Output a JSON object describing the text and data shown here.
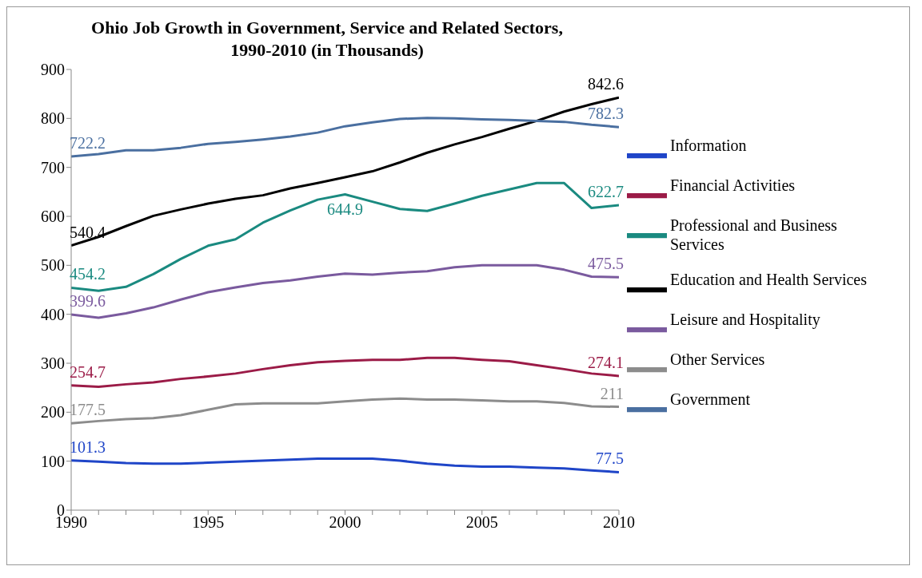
{
  "chart_data": {
    "type": "line",
    "title": "Ohio Job Growth in Government, Service and Related Sectors, 1990-2010 (in Thousands)",
    "x": [
      1990,
      1991,
      1992,
      1993,
      1994,
      1995,
      1996,
      1997,
      1998,
      1999,
      2000,
      2001,
      2002,
      2003,
      2004,
      2005,
      2006,
      2007,
      2008,
      2009,
      2010
    ],
    "series": [
      {
        "name": "Information",
        "color": "#1f45c8",
        "values": [
          101.3,
          99,
          96,
          95,
          95,
          97,
          99,
          101,
          103,
          105,
          105,
          105,
          101,
          95,
          91,
          89,
          89,
          87,
          85,
          81,
          77.5
        ],
        "value_labels": [
          "101.3",
          null,
          null,
          null,
          null,
          null,
          null,
          null,
          null,
          null,
          null,
          null,
          null,
          null,
          null,
          null,
          null,
          null,
          null,
          null,
          "77.5"
        ]
      },
      {
        "name": "Financial Activities",
        "color": "#9b1b47",
        "values": [
          254.7,
          252,
          257,
          261,
          268,
          273,
          279,
          288,
          296,
          302,
          305,
          307,
          307,
          311,
          311,
          307,
          304,
          296,
          288,
          279,
          274.1
        ],
        "value_labels": [
          "254.7",
          null,
          null,
          null,
          null,
          null,
          null,
          null,
          null,
          null,
          null,
          null,
          null,
          null,
          null,
          null,
          null,
          null,
          null,
          null,
          "274.1"
        ]
      },
      {
        "name": "Professional and Business Services",
        "color": "#1a8a80",
        "values": [
          454.2,
          448,
          456,
          482,
          513,
          540,
          553,
          587,
          612,
          634,
          644.9,
          630,
          615,
          611,
          626,
          642,
          655,
          668,
          668,
          617,
          622.7
        ],
        "value_labels": [
          "454.2",
          null,
          null,
          null,
          null,
          null,
          null,
          null,
          null,
          null,
          "644.9",
          null,
          null,
          null,
          null,
          null,
          null,
          null,
          null,
          null,
          "622.7"
        ]
      },
      {
        "name": "Education and Health Services",
        "color": "#000000",
        "values": [
          540.4,
          558,
          580,
          601,
          614,
          626,
          636,
          643,
          657,
          668,
          680,
          692,
          710,
          730,
          747,
          762,
          779,
          795,
          814,
          829,
          842.6
        ],
        "value_labels": [
          "540.4",
          null,
          null,
          null,
          null,
          null,
          null,
          null,
          null,
          null,
          null,
          null,
          null,
          null,
          null,
          null,
          null,
          null,
          null,
          null,
          "842.6"
        ]
      },
      {
        "name": "Leisure and Hospitality",
        "color": "#7a5a9e",
        "values": [
          399.6,
          393,
          402,
          414,
          430,
          445,
          455,
          464,
          469,
          477,
          483,
          481,
          485,
          488,
          496,
          500,
          500,
          500,
          491,
          477,
          475.5
        ],
        "value_labels": [
          "399.6",
          null,
          null,
          null,
          null,
          null,
          null,
          null,
          null,
          null,
          null,
          null,
          null,
          null,
          null,
          null,
          null,
          null,
          null,
          null,
          "475.5"
        ]
      },
      {
        "name": "Other Services",
        "color": "#8c8c8c",
        "values": [
          177.5,
          182,
          186,
          188,
          194,
          205,
          216,
          218,
          218,
          218,
          222,
          226,
          228,
          226,
          226,
          224,
          222,
          222,
          219,
          212,
          211
        ],
        "value_labels": [
          "177.5",
          null,
          null,
          null,
          null,
          null,
          null,
          null,
          null,
          null,
          null,
          null,
          null,
          null,
          null,
          null,
          null,
          null,
          null,
          null,
          "211"
        ]
      },
      {
        "name": "Government",
        "color": "#4a6fa0",
        "values": [
          722.2,
          727,
          735,
          735,
          740,
          748,
          752,
          757,
          763,
          771,
          784,
          792,
          799,
          801,
          800,
          798,
          797,
          795,
          793,
          787,
          782.3
        ],
        "value_labels": [
          "722.2",
          null,
          null,
          null,
          null,
          null,
          null,
          null,
          null,
          null,
          null,
          null,
          null,
          null,
          null,
          null,
          null,
          null,
          null,
          null,
          "782.3"
        ]
      }
    ],
    "xlim": [
      1990,
      2010
    ],
    "xticks": [
      1990,
      {
        "value": 1991,
        "label": null
      },
      {
        "value": 1992,
        "label": null
      },
      {
        "value": 1993,
        "label": null
      },
      {
        "value": 1994,
        "label": null
      },
      1995,
      {
        "value": 1996,
        "label": null
      },
      {
        "value": 1997,
        "label": null
      },
      {
        "value": 1998,
        "label": null
      },
      {
        "value": 1999,
        "label": null
      },
      2000,
      {
        "value": 2001,
        "label": null
      },
      {
        "value": 2002,
        "label": null
      },
      {
        "value": 2003,
        "label": null
      },
      {
        "value": 2004,
        "label": null
      },
      2005,
      {
        "value": 2006,
        "label": null
      },
      {
        "value": 2007,
        "label": null
      },
      {
        "value": 2008,
        "label": null
      },
      {
        "value": 2009,
        "label": null
      },
      2010
    ],
    "ylim": [
      0,
      900
    ],
    "yticks": [
      0,
      100,
      200,
      300,
      400,
      500,
      600,
      700,
      800,
      900
    ],
    "grid": false,
    "legend": "right",
    "marker": "none",
    "line_style": "solid"
  }
}
